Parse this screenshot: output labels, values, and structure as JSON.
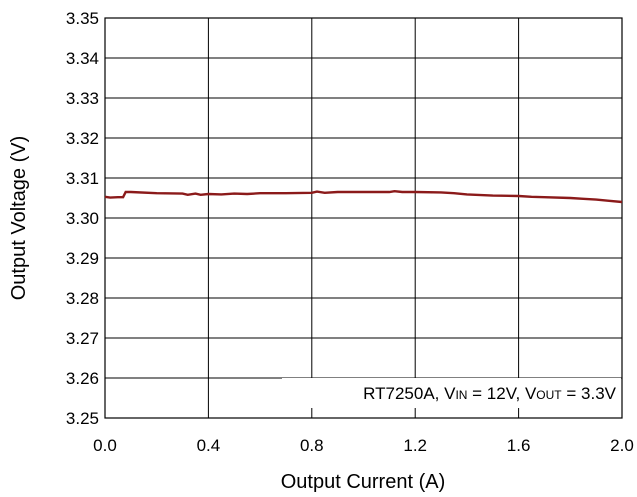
{
  "chart_data": {
    "type": "line",
    "xlabel": "Output Current (A)",
    "ylabel": "Output Voltage (V)",
    "xlim": [
      0,
      2.0
    ],
    "ylim": [
      3.25,
      3.35
    ],
    "xticks": [
      "0.0",
      "0.4",
      "0.8",
      "1.2",
      "1.6",
      "2.0"
    ],
    "yticks": [
      "3.25",
      "3.26",
      "3.27",
      "3.28",
      "3.29",
      "3.30",
      "3.31",
      "3.32",
      "3.33",
      "3.34",
      "3.35"
    ],
    "grid": true,
    "line_color": "#8b1a1a",
    "annotation": {
      "prefix": "RT7250A, V",
      "vin_sub": "IN",
      "vin_val": " = 12V, V",
      "vout_sub": "OUT",
      "vout_val": " = 3.3V"
    },
    "series": [
      {
        "x": [
          0.0,
          0.02,
          0.05,
          0.07,
          0.08,
          0.1,
          0.2,
          0.3,
          0.32,
          0.35,
          0.37,
          0.4,
          0.45,
          0.5,
          0.55,
          0.6,
          0.7,
          0.8,
          0.82,
          0.85,
          0.9,
          1.0,
          1.1,
          1.12,
          1.15,
          1.2,
          1.3,
          1.35,
          1.4,
          1.5,
          1.6,
          1.65,
          1.7,
          1.8,
          1.85,
          1.9,
          1.95,
          2.0
        ],
        "y": [
          3.3053,
          3.3051,
          3.3052,
          3.3052,
          3.3065,
          3.3065,
          3.3062,
          3.3061,
          3.3058,
          3.3061,
          3.3058,
          3.306,
          3.3059,
          3.3061,
          3.306,
          3.3062,
          3.3062,
          3.3063,
          3.3066,
          3.3063,
          3.3065,
          3.3065,
          3.3065,
          3.3067,
          3.3065,
          3.3065,
          3.3064,
          3.3062,
          3.3059,
          3.3056,
          3.3055,
          3.3053,
          3.3052,
          3.305,
          3.3048,
          3.3046,
          3.3043,
          3.304
        ]
      }
    ]
  }
}
